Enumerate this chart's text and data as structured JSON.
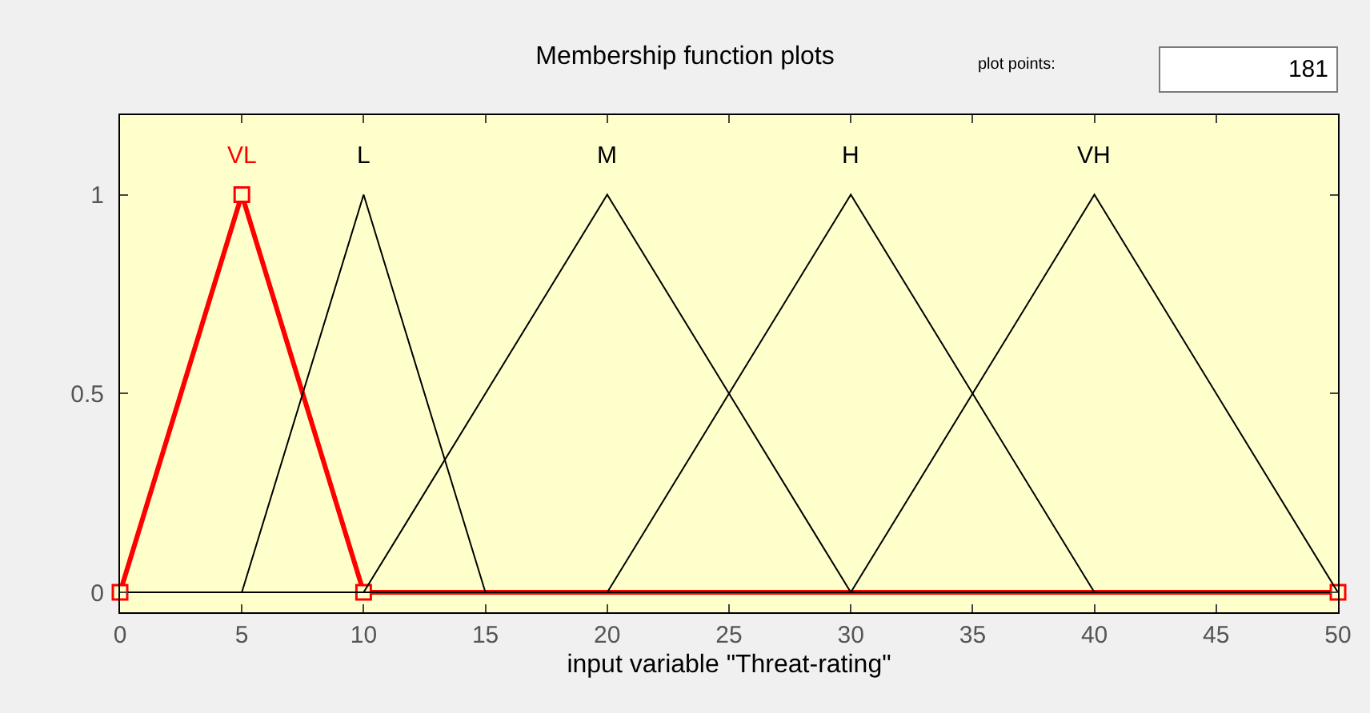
{
  "chart_data": {
    "type": "line",
    "title": "Membership function plots",
    "xlabel": "input variable \"Threat-rating\"",
    "annotations": [
      "plot points:",
      "181"
    ],
    "xlim": [
      0,
      50
    ],
    "xticks": [
      0,
      5,
      10,
      15,
      20,
      25,
      30,
      35,
      40,
      45,
      50
    ],
    "ylim": [
      -0.05,
      1.2
    ],
    "yticks": [
      0,
      0.5,
      1
    ],
    "grid": false,
    "legend": false,
    "series": [
      {
        "name": "VL",
        "color": "#ff0000",
        "x": [
          0,
          5,
          10,
          50
        ],
        "values": [
          0,
          1,
          0,
          0
        ],
        "marker": "square"
      },
      {
        "name": "L",
        "color": "#000000",
        "x": [
          0,
          5,
          10,
          15,
          50
        ],
        "values": [
          0,
          0,
          1,
          0,
          0
        ]
      },
      {
        "name": "M",
        "color": "#000000",
        "x": [
          0,
          10,
          20,
          30,
          50
        ],
        "values": [
          0,
          0,
          1,
          0,
          0
        ]
      },
      {
        "name": "H",
        "color": "#000000",
        "x": [
          0,
          20,
          30,
          40,
          50
        ],
        "values": [
          0,
          0,
          1,
          0,
          0
        ]
      },
      {
        "name": "VH",
        "color": "#000000",
        "x": [
          0,
          30,
          40,
          50
        ],
        "values": [
          0,
          0,
          1,
          0
        ]
      }
    ]
  }
}
